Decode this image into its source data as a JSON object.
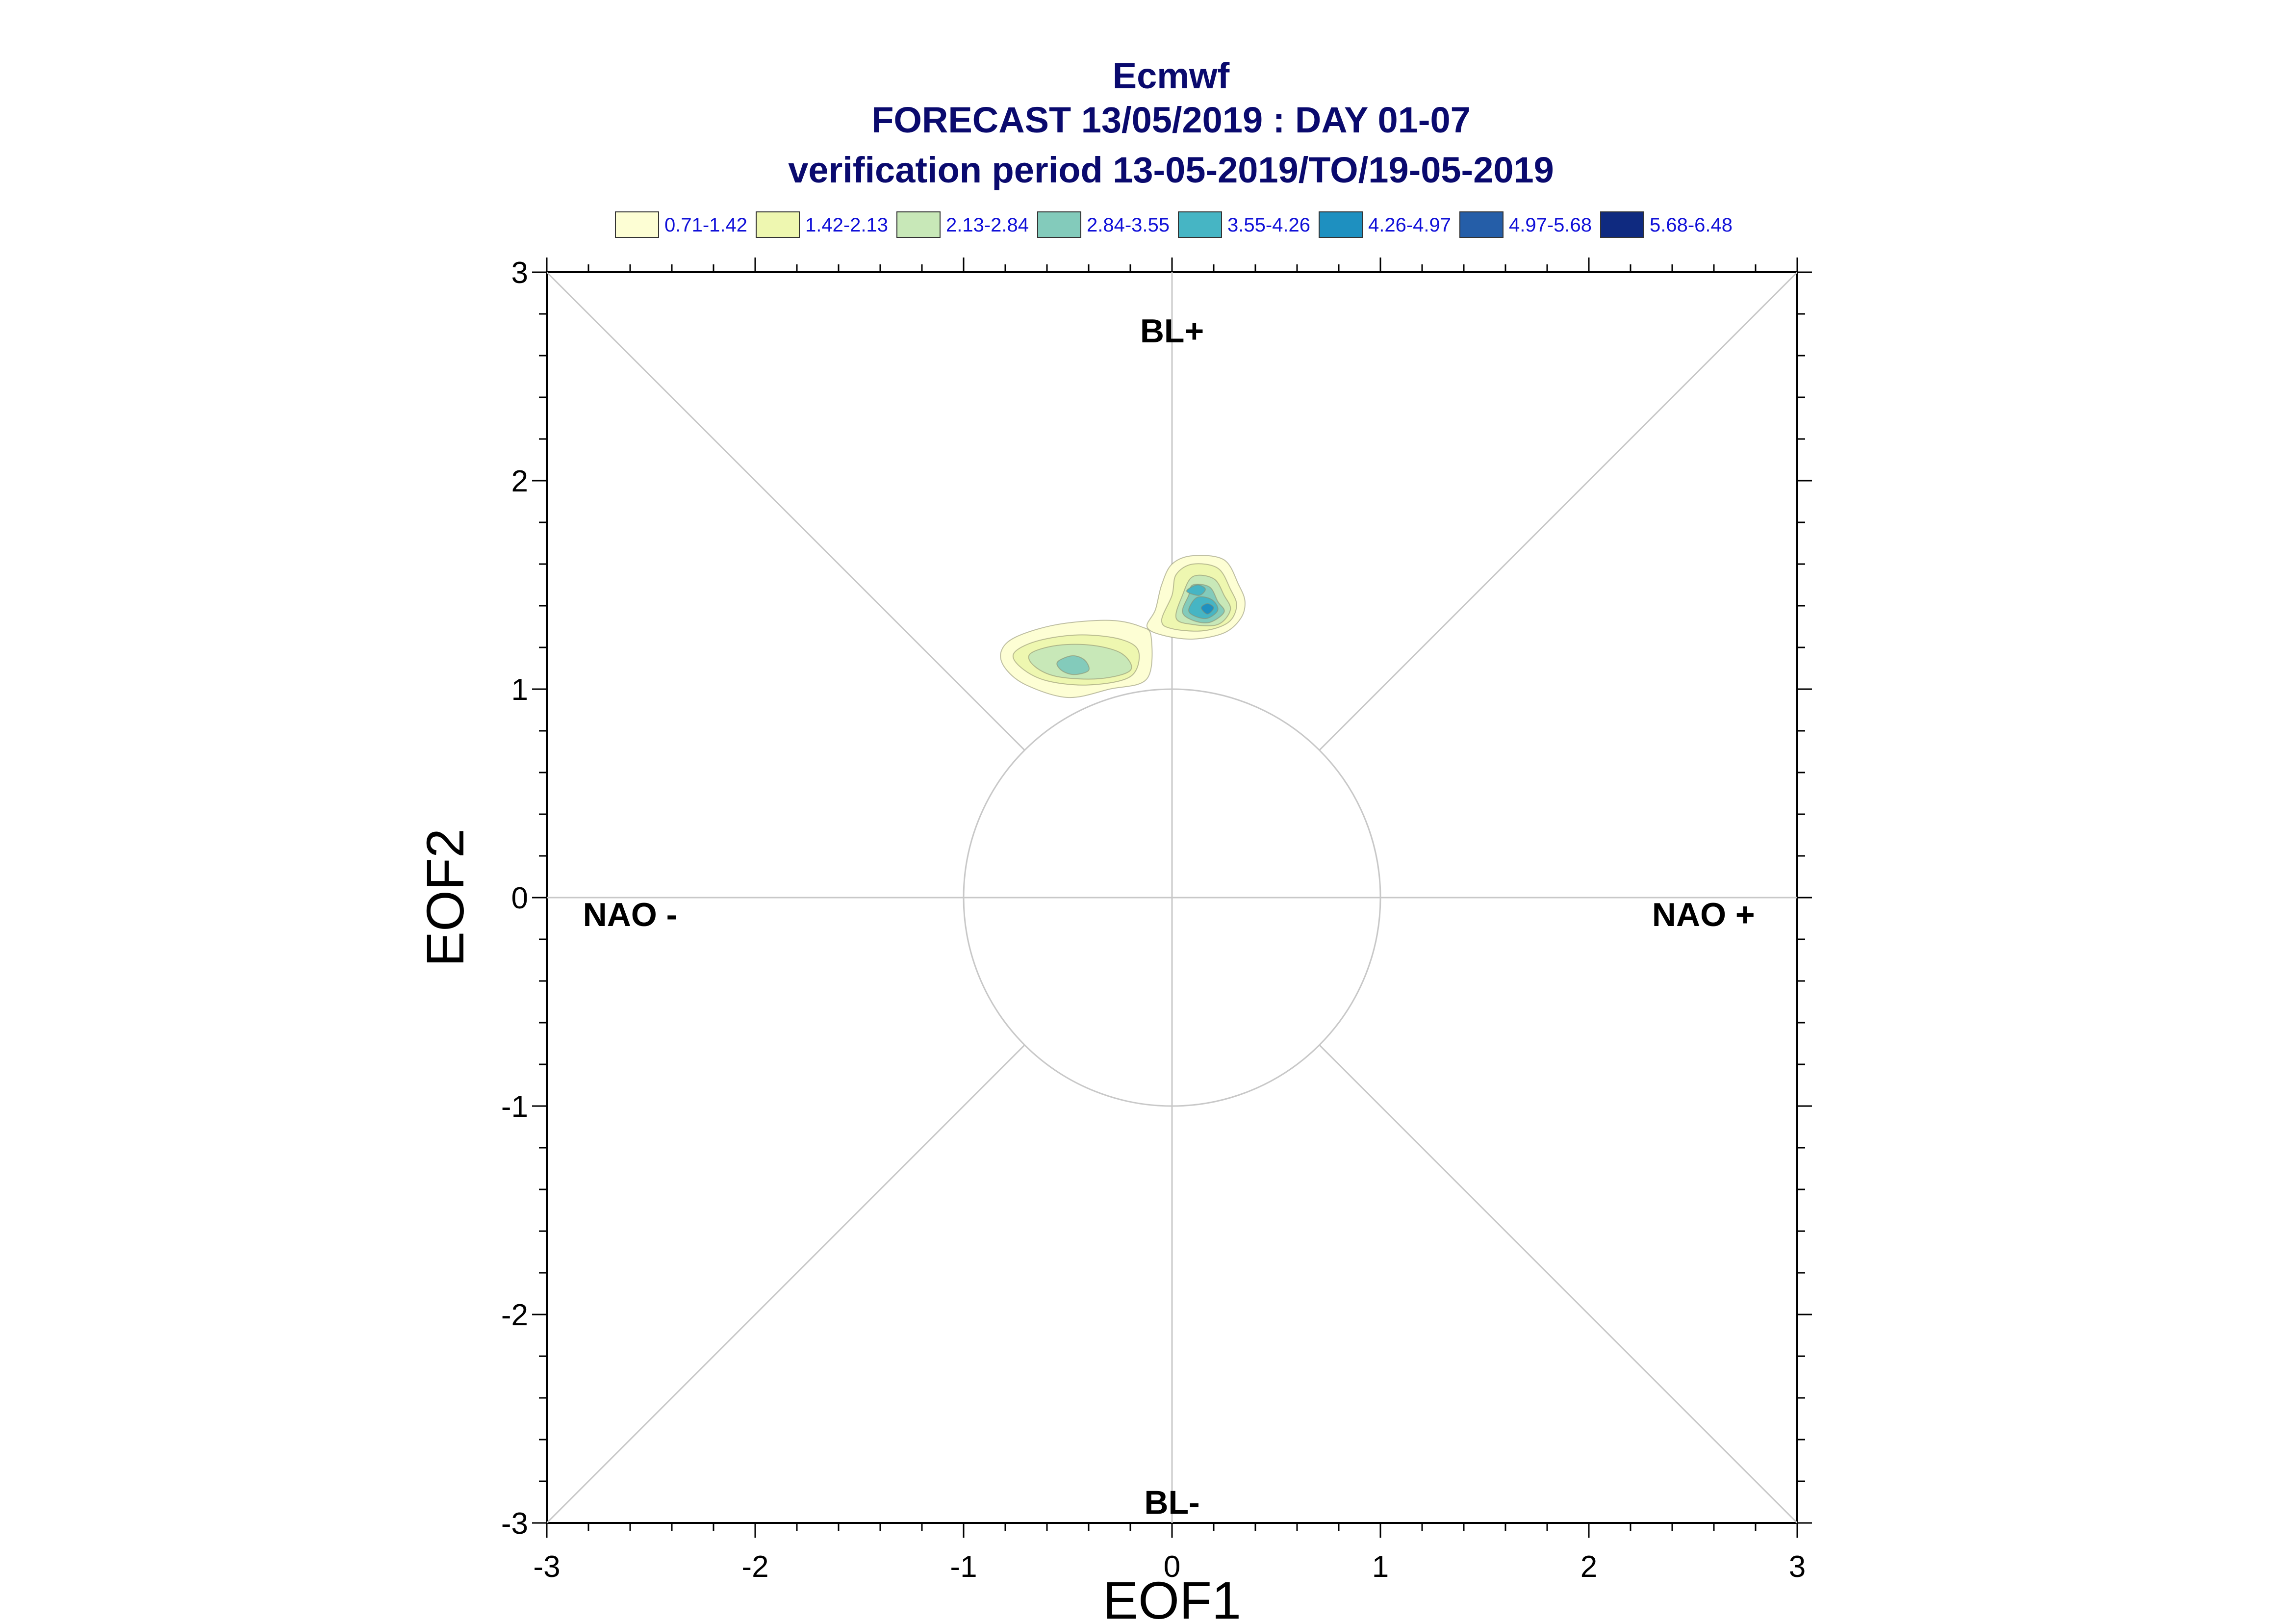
{
  "chart_data": {
    "type": "contour",
    "title_lines": [
      "Ecmwf",
      "FORECAST 13/05/2019 : DAY 01-07",
      "verification period 13-05-2019/TO/19-05-2019"
    ],
    "xlabel": "EOF1",
    "ylabel": "EOF2",
    "xlim": [
      -3,
      3
    ],
    "ylim": [
      -3,
      3
    ],
    "x_ticks": [
      -3,
      -2,
      -1,
      0,
      1,
      2,
      3
    ],
    "y_ticks": [
      -3,
      -2,
      -1,
      0,
      1,
      2,
      3
    ],
    "x_tick_labels": [
      "-3",
      "-2",
      "-1",
      "0",
      "1",
      "2",
      "3"
    ],
    "y_tick_labels": [
      "-3",
      "-2",
      "-1",
      "0",
      "1",
      "2",
      "3"
    ],
    "grid": false,
    "reference_circle_radius": 1,
    "regime_labels": [
      {
        "text": "BL+",
        "x": 0,
        "y": 2.72
      },
      {
        "text": "BL-",
        "x": 0,
        "y": -2.9
      },
      {
        "text": "NAO -",
        "x": -2.6,
        "y": -0.08
      },
      {
        "text": "NAO +",
        "x": 2.55,
        "y": -0.08
      }
    ],
    "legend": {
      "placement": "top",
      "levels": [
        {
          "label": "0.71-1.42",
          "color": "#fdfed4"
        },
        {
          "label": "1.42-2.13",
          "color": "#eef7b0"
        },
        {
          "label": "2.13-2.84",
          "color": "#c8e8b8"
        },
        {
          "label": "2.84-3.55",
          "color": "#83cbbb"
        },
        {
          "label": "3.55-4.26",
          "color": "#46b5c4"
        },
        {
          "label": "4.26-4.97",
          "color": "#1e90c0"
        },
        {
          "label": "4.97-5.68",
          "color": "#255ea8"
        },
        {
          "label": "5.68-6.48",
          "color": "#0f2a80"
        }
      ]
    },
    "density_blobs": [
      {
        "name": "left-cluster",
        "level_contours": [
          {
            "level": 0,
            "points": [
              [
                -0.82,
                1.18
              ],
              [
                -0.75,
                1.25
              ],
              [
                -0.55,
                1.31
              ],
              [
                -0.3,
                1.33
              ],
              [
                -0.15,
                1.3
              ],
              [
                -0.1,
                1.25
              ],
              [
                -0.12,
                1.05
              ],
              [
                -0.3,
                1.0
              ],
              [
                -0.5,
                0.96
              ],
              [
                -0.7,
                1.02
              ],
              [
                -0.8,
                1.1
              ]
            ]
          },
          {
            "level": 1,
            "points": [
              [
                -0.76,
                1.17
              ],
              [
                -0.65,
                1.23
              ],
              [
                -0.45,
                1.26
              ],
              [
                -0.25,
                1.24
              ],
              [
                -0.16,
                1.18
              ],
              [
                -0.2,
                1.06
              ],
              [
                -0.4,
                1.02
              ],
              [
                -0.6,
                1.04
              ],
              [
                -0.72,
                1.1
              ]
            ]
          },
          {
            "level": 2,
            "points": [
              [
                -0.68,
                1.17
              ],
              [
                -0.55,
                1.21
              ],
              [
                -0.38,
                1.21
              ],
              [
                -0.24,
                1.17
              ],
              [
                -0.2,
                1.09
              ],
              [
                -0.35,
                1.05
              ],
              [
                -0.55,
                1.06
              ],
              [
                -0.66,
                1.11
              ]
            ]
          },
          {
            "level": 3,
            "points": [
              [
                -0.55,
                1.13
              ],
              [
                -0.48,
                1.16
              ],
              [
                -0.42,
                1.14
              ],
              [
                -0.4,
                1.09
              ],
              [
                -0.47,
                1.07
              ],
              [
                -0.53,
                1.09
              ]
            ]
          }
        ]
      },
      {
        "name": "right-cluster",
        "level_contours": [
          {
            "level": 0,
            "points": [
              [
                -0.12,
                1.3
              ],
              [
                -0.08,
                1.38
              ],
              [
                -0.05,
                1.5
              ],
              [
                0.0,
                1.6
              ],
              [
                0.1,
                1.64
              ],
              [
                0.25,
                1.62
              ],
              [
                0.32,
                1.5
              ],
              [
                0.35,
                1.42
              ],
              [
                0.33,
                1.34
              ],
              [
                0.25,
                1.27
              ],
              [
                0.1,
                1.24
              ],
              [
                -0.05,
                1.26
              ]
            ]
          },
          {
            "level": 1,
            "points": [
              [
                -0.05,
                1.33
              ],
              [
                0.0,
                1.45
              ],
              [
                0.02,
                1.55
              ],
              [
                0.1,
                1.6
              ],
              [
                0.22,
                1.58
              ],
              [
                0.28,
                1.48
              ],
              [
                0.31,
                1.4
              ],
              [
                0.27,
                1.32
              ],
              [
                0.15,
                1.28
              ],
              [
                0.0,
                1.29
              ]
            ]
          },
          {
            "level": 2,
            "points": [
              [
                0.02,
                1.34
              ],
              [
                0.05,
                1.45
              ],
              [
                0.1,
                1.54
              ],
              [
                0.2,
                1.53
              ],
              [
                0.25,
                1.45
              ],
              [
                0.28,
                1.38
              ],
              [
                0.22,
                1.31
              ],
              [
                0.1,
                1.31
              ]
            ]
          },
          {
            "level": 3,
            "points": [
              [
                0.05,
                1.37
              ],
              [
                0.08,
                1.45
              ],
              [
                0.1,
                1.5
              ],
              [
                0.18,
                1.49
              ],
              [
                0.22,
                1.42
              ],
              [
                0.25,
                1.37
              ],
              [
                0.18,
                1.32
              ],
              [
                0.1,
                1.33
              ]
            ]
          },
          {
            "level": 4,
            "points": [
              [
                0.08,
                1.38
              ],
              [
                0.12,
                1.44
              ],
              [
                0.19,
                1.43
              ],
              [
                0.22,
                1.38
              ],
              [
                0.17,
                1.34
              ],
              [
                0.11,
                1.35
              ]
            ]
          },
          {
            "level": 4,
            "points": [
              [
                0.07,
                1.47
              ],
              [
                0.12,
                1.5
              ],
              [
                0.16,
                1.48
              ],
              [
                0.13,
                1.45
              ]
            ]
          },
          {
            "level": 5,
            "points": [
              [
                0.14,
                1.39
              ],
              [
                0.17,
                1.41
              ],
              [
                0.2,
                1.39
              ],
              [
                0.17,
                1.36
              ]
            ]
          }
        ]
      }
    ]
  }
}
